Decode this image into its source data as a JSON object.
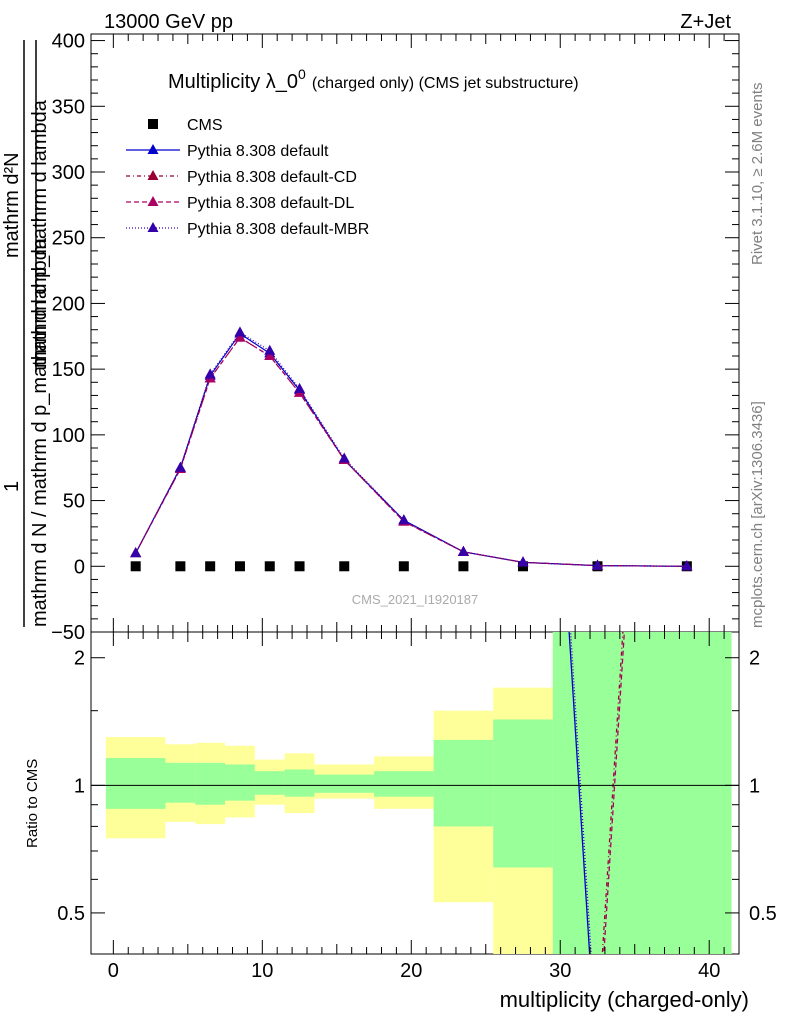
{
  "header": {
    "left_label": "13000 GeV pp",
    "right_label": "Z+Jet"
  },
  "side_labels": {
    "rivet": "Rivet 3.1.10, ≥ 2.6M events",
    "mcplots": "mcplots.cern.ch [arXiv:1306.3436]"
  },
  "watermark": "CMS_2021_I1920187",
  "colors": {
    "cms": "#000000",
    "default": "#0000cc",
    "default_cd": "#990033",
    "default_dl": "#aa0066",
    "default_mbr": "#3300aa",
    "band_inner": "#99ff99",
    "band_outer": "#ffff99"
  },
  "chart_data": [
    {
      "type": "line",
      "title_main": "Multiplicity λ_0",
      "title_sup": "0",
      "title_tail": "(charged only) (CMS jet substructure)",
      "ylabel_top": "mathrm d²N",
      "ylabel_top_lower": "mathrm d p_mathrm d lambda",
      "ylabel_one": "1",
      "ylabel_bottom": "mathrm d N / mathrm d p_mathrm d lambda",
      "xlim": [
        -1.5,
        42
      ],
      "ylim": [
        -50,
        405
      ],
      "yticks": [
        -50,
        0,
        50,
        100,
        150,
        200,
        250,
        300,
        350,
        400
      ],
      "ytick_labels": [
        "−50",
        "0",
        "50",
        "100",
        "150",
        "200",
        "250",
        "300",
        "350",
        "400"
      ],
      "legend_position": "top-left",
      "x": [
        1.5,
        4.5,
        6.5,
        8.5,
        10.5,
        12.5,
        15.5,
        19.5,
        23.5,
        27.5,
        32.5,
        38.5
      ],
      "series": [
        {
          "name": "CMS",
          "key": "cms",
          "marker": "square",
          "dash": "none",
          "values": [
            0,
            0,
            0,
            0,
            0,
            0,
            0,
            0,
            0,
            0,
            0,
            0
          ]
        },
        {
          "name": "Pythia 8.308 default",
          "key": "default",
          "marker": "triangle",
          "dash": "solid",
          "values": [
            10,
            75,
            145,
            177,
            162,
            134,
            81,
            35,
            11,
            3,
            0.5,
            0
          ]
        },
        {
          "name": "Pythia 8.308 default-CD",
          "key": "default_cd",
          "marker": "triangle",
          "dash": "4,3,1,3",
          "values": [
            10,
            74,
            143,
            174,
            160,
            132,
            81,
            34,
            11,
            3,
            0.5,
            0
          ]
        },
        {
          "name": "Pythia 8.308 default-DL",
          "key": "default_dl",
          "marker": "triangle",
          "dash": "5,3",
          "values": [
            10,
            74,
            143,
            174,
            160,
            132,
            81,
            34,
            11,
            3,
            0.5,
            0
          ]
        },
        {
          "name": "Pythia 8.308 default-MBR",
          "key": "default_mbr",
          "marker": "triangle",
          "dash": "1,2",
          "values": [
            10,
            75,
            146,
            178,
            164,
            135,
            82,
            35,
            11,
            3,
            0.5,
            0
          ]
        }
      ]
    },
    {
      "type": "area",
      "ylabel": "Ratio to CMS",
      "xlabel": "multiplicity (charged-only)",
      "xlim": [
        -1.5,
        42
      ],
      "ylim_log": [
        0.4,
        2.3
      ],
      "scale": "log",
      "xticks": [
        0,
        10,
        20,
        30,
        40
      ],
      "yticks": [
        0.5,
        1,
        2
      ],
      "ytick_labels": [
        "0.5",
        "1",
        "2"
      ],
      "reference": 1,
      "bins": [
        {
          "lo": -0.5,
          "hi": 3.5,
          "inner": [
            0.88,
            1.16
          ],
          "outer": [
            0.75,
            1.3
          ]
        },
        {
          "lo": 3.5,
          "hi": 5.5,
          "inner": [
            0.91,
            1.13
          ],
          "outer": [
            0.82,
            1.25
          ]
        },
        {
          "lo": 5.5,
          "hi": 7.5,
          "inner": [
            0.9,
            1.13
          ],
          "outer": [
            0.81,
            1.26
          ]
        },
        {
          "lo": 7.5,
          "hi": 9.5,
          "inner": [
            0.92,
            1.12
          ],
          "outer": [
            0.84,
            1.24
          ]
        },
        {
          "lo": 9.5,
          "hi": 11.5,
          "inner": [
            0.95,
            1.08
          ],
          "outer": [
            0.9,
            1.15
          ]
        },
        {
          "lo": 11.5,
          "hi": 13.5,
          "inner": [
            0.94,
            1.09
          ],
          "outer": [
            0.86,
            1.19
          ]
        },
        {
          "lo": 13.5,
          "hi": 17.5,
          "inner": [
            0.96,
            1.06
          ],
          "outer": [
            0.93,
            1.12
          ]
        },
        {
          "lo": 17.5,
          "hi": 21.5,
          "inner": [
            0.94,
            1.08
          ],
          "outer": [
            0.88,
            1.17
          ]
        },
        {
          "lo": 21.5,
          "hi": 25.5,
          "inner": [
            0.8,
            1.28
          ],
          "outer": [
            0.53,
            1.5
          ]
        },
        {
          "lo": 25.5,
          "hi": 29.5,
          "inner": [
            0.64,
            1.43
          ],
          "outer": [
            0.3,
            1.7
          ]
        },
        {
          "lo": 29.5,
          "hi": 41.5,
          "inner": [
            0.3,
            3.0
          ],
          "outer": [
            0.3,
            3.0
          ]
        }
      ],
      "ratio_lines": [
        {
          "key": "default",
          "dash": "solid",
          "x": [
            30.5,
            32.2
          ],
          "values": [
            2.6,
            0.3
          ]
        },
        {
          "key": "default_mbr",
          "dash": "1,2",
          "x": [
            30.6,
            32.3
          ],
          "values": [
            2.6,
            0.3
          ]
        },
        {
          "key": "default_cd",
          "dash": "4,3,1,3",
          "x": [
            32.6,
            34.3
          ],
          "values": [
            0.3,
            2.6
          ]
        },
        {
          "key": "default_dl",
          "dash": "5,3",
          "x": [
            32.7,
            34.4
          ],
          "values": [
            0.3,
            2.6
          ]
        }
      ]
    }
  ]
}
